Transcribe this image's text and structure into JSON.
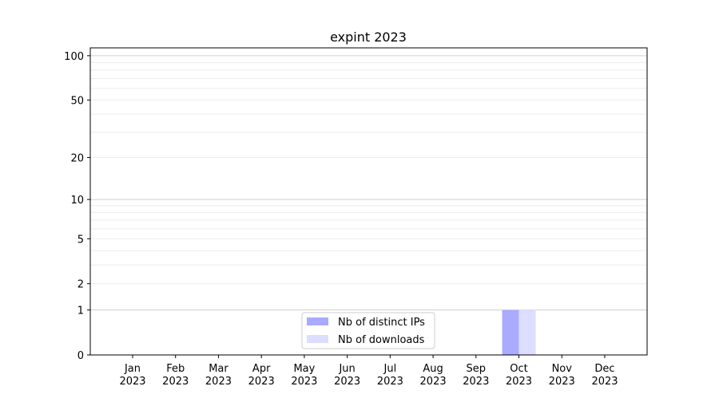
{
  "chart_data": {
    "type": "bar",
    "title": "expint 2023",
    "xlabel": "",
    "ylabel": "",
    "y_scale": "log(1+y)",
    "ylim": [
      0,
      113
    ],
    "y_ticks": [
      0,
      1,
      2,
      5,
      10,
      20,
      50,
      100
    ],
    "y_tick_labels": [
      "0",
      "1",
      "2",
      "5",
      "10",
      "20",
      "50",
      "100"
    ],
    "categories": [
      "Jan\n2023",
      "Feb\n2023",
      "Mar\n2023",
      "Apr\n2023",
      "May\n2023",
      "Jun\n2023",
      "Jul\n2023",
      "Aug\n2023",
      "Sep\n2023",
      "Oct\n2023",
      "Nov\n2023",
      "Dec\n2023"
    ],
    "x_tick_months": [
      "Jan",
      "Feb",
      "Mar",
      "Apr",
      "May",
      "Jun",
      "Jul",
      "Aug",
      "Sep",
      "Oct",
      "Nov",
      "Dec"
    ],
    "x_tick_year": "2023",
    "grid": true,
    "legend_position": "bottom-center",
    "series": [
      {
        "name": "Nb of distinct IPs",
        "color": "#aaaaff",
        "values": [
          0,
          0,
          0,
          0,
          0,
          0,
          0,
          0,
          0,
          1,
          0,
          0
        ]
      },
      {
        "name": "Nb of downloads",
        "color": "#ddddff",
        "values": [
          0,
          0,
          0,
          0,
          0,
          0,
          0,
          0,
          0,
          1,
          0,
          0
        ]
      }
    ]
  }
}
